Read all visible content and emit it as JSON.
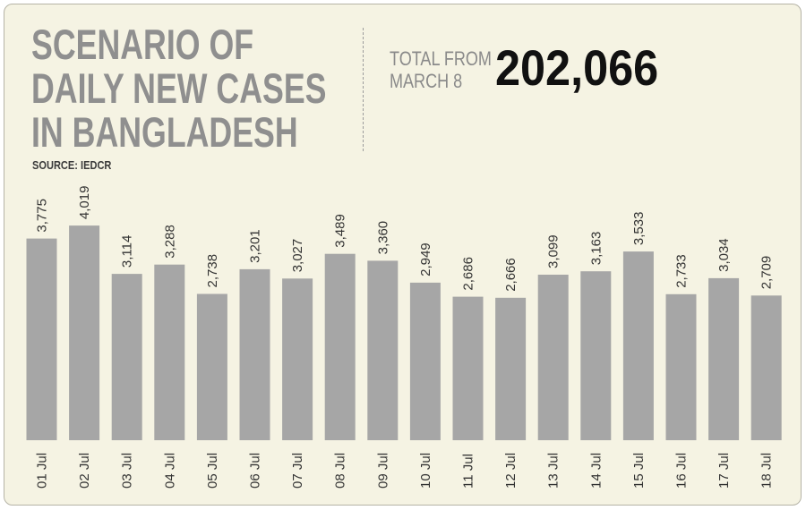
{
  "header": {
    "title_lines": [
      "SCENARIO OF",
      "DAILY NEW CASES",
      "IN BANGLADESH"
    ],
    "source": "SOURCE: IEDCR",
    "total_label_lines": [
      "TOTAL FROM",
      "MARCH 8"
    ],
    "total_value": "202,066"
  },
  "colors": {
    "background": "#f5f3e3",
    "bar": "#a6a6a6",
    "title": "#8f8f8f",
    "text": "#333333",
    "total": "#111111"
  },
  "chart_data": {
    "type": "bar",
    "title": "SCENARIO OF DAILY NEW CASES IN BANGLADESH",
    "categories": [
      "01 Jul",
      "02 Jul",
      "03 Jul",
      "04 Jul",
      "05 Jul",
      "06 Jul",
      "07 Jul",
      "08 Jul",
      "09 Jul",
      "10 Jul",
      "11 Jul",
      "12 Jul",
      "13 Jul",
      "14 Jul",
      "15 Jul",
      "16 Jul",
      "17 Jul",
      "18 Jul"
    ],
    "values": [
      3775,
      4019,
      3114,
      3288,
      2738,
      3201,
      3027,
      3489,
      3360,
      2949,
      2686,
      2666,
      3099,
      3163,
      3533,
      2733,
      3034,
      2709
    ],
    "data_labels": [
      "3,775",
      "4,019",
      "3,114",
      "3,288",
      "2,738",
      "3,201",
      "3,027",
      "3,489",
      "3,360",
      "2,949",
      "2,686",
      "2,666",
      "3,099",
      "3,163",
      "3,533",
      "2,733",
      "3,034",
      "2,709"
    ],
    "xlabel": "",
    "ylabel": "",
    "grid": false,
    "legend": "none"
  }
}
